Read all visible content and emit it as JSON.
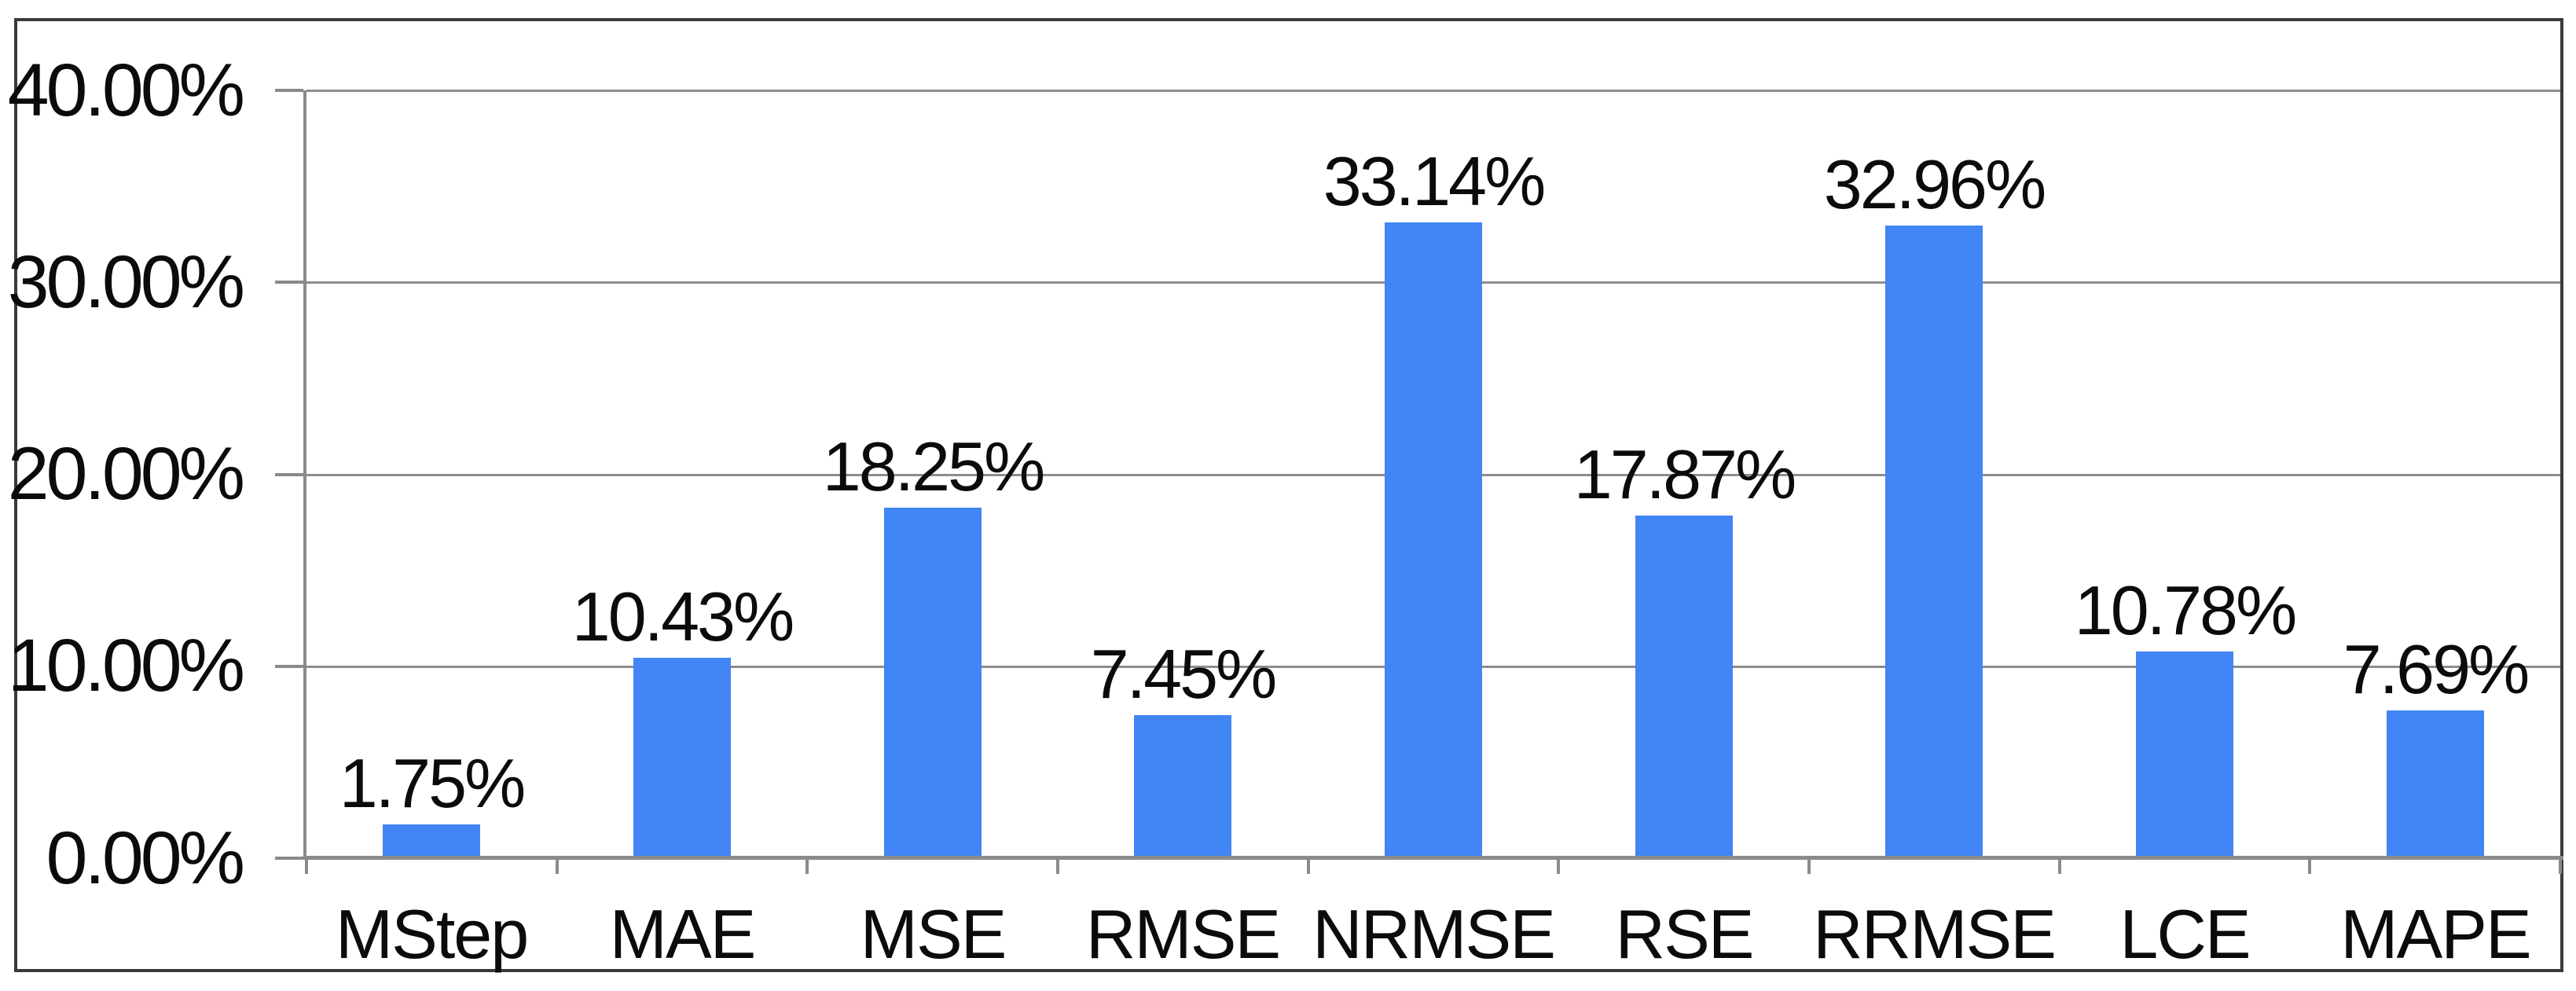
{
  "chart_data": {
    "type": "bar",
    "title": "",
    "xlabel": "",
    "ylabel": "",
    "categories": [
      "MStep",
      "MAE",
      "MSE",
      "RMSE",
      "NRMSE",
      "RSE",
      "RRMSE",
      "LCE",
      "MAPE"
    ],
    "values": [
      1.75,
      10.43,
      18.25,
      7.45,
      33.14,
      17.87,
      32.96,
      10.78,
      7.69
    ],
    "data_labels": [
      "1.75%",
      "10.43%",
      "18.25%",
      "7.45%",
      "33.14%",
      "17.87%",
      "32.96%",
      "10.78%",
      "7.69%"
    ],
    "y_tick_labels": [
      "40.00%",
      "30.00%",
      "20.00%",
      "10.00%",
      "0.00%"
    ],
    "ylim": [
      0,
      40
    ],
    "grid": true,
    "legend": false,
    "colors": {
      "bar": "#4285f4",
      "gridline": "#8d8d8d",
      "axis": "#8a8a8a",
      "frame_border": "#3a3a3a",
      "text": "#0b0b0b",
      "background": "#ffffff"
    }
  }
}
